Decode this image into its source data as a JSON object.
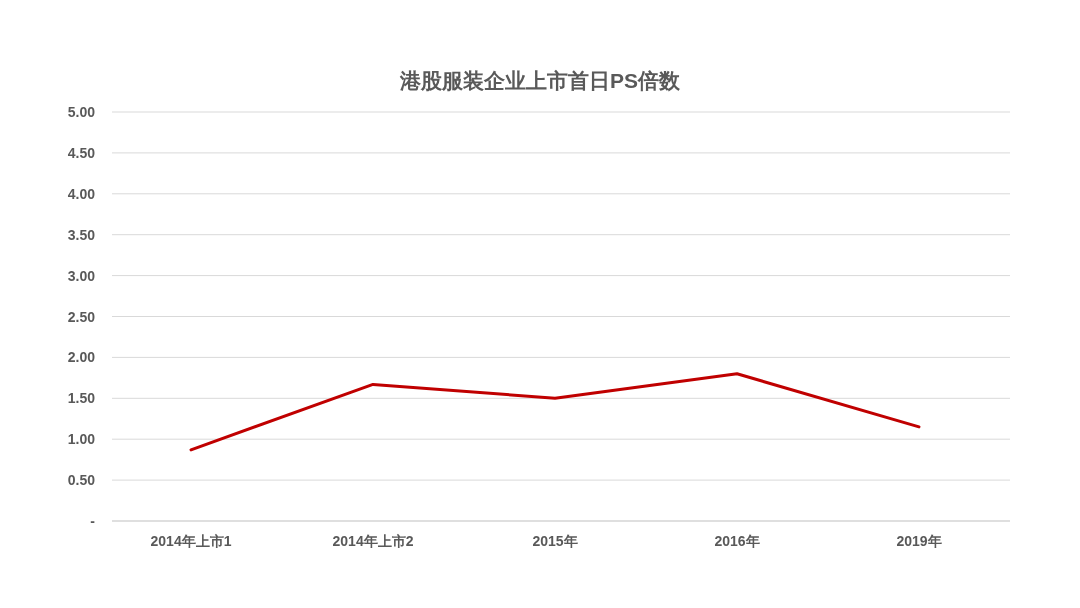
{
  "chart_data": {
    "type": "line",
    "title": "港股服装企业上市首日PS倍数",
    "categories": [
      "2014年上市1",
      "2014年上市2",
      "2015年",
      "2016年",
      "2019年"
    ],
    "series": [
      {
        "color": "#c00000",
        "values": [
          0.87,
          1.67,
          1.5,
          1.8,
          1.15
        ]
      }
    ],
    "ylim": [
      0,
      5
    ],
    "yticks": [
      {
        "value": 0,
        "label": "-"
      },
      {
        "value": 0.5,
        "label": "0.50"
      },
      {
        "value": 1,
        "label": "1.00"
      },
      {
        "value": 1.5,
        "label": "1.50"
      },
      {
        "value": 2,
        "label": "2.00"
      },
      {
        "value": 2.5,
        "label": "2.50"
      },
      {
        "value": 3,
        "label": "3.00"
      },
      {
        "value": 3.5,
        "label": "3.50"
      },
      {
        "value": 4,
        "label": "4.00"
      },
      {
        "value": 4.5,
        "label": "4.50"
      },
      {
        "value": 5,
        "label": "5.00"
      }
    ],
    "grid": "y",
    "line_style": "solid"
  }
}
